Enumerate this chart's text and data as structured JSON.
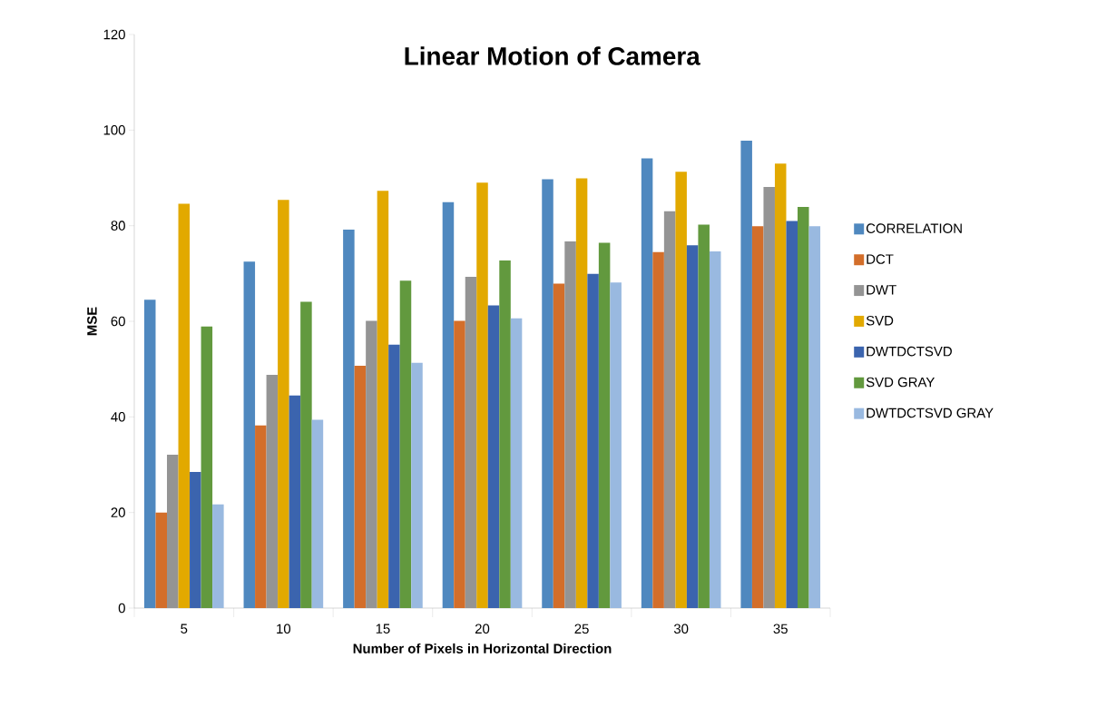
{
  "chart_data": {
    "type": "bar",
    "title": "Linear Motion of Camera",
    "xlabel": "Number of Pixels in Horizontal Direction",
    "ylabel": "MSE",
    "categories": [
      "5",
      "10",
      "15",
      "20",
      "25",
      "30",
      "35"
    ],
    "series": [
      {
        "name": "CORRELATION",
        "color": "#4f88bf",
        "values": [
          64.5,
          72.5,
          79.2,
          84.9,
          89.7,
          94.1,
          97.8
        ]
      },
      {
        "name": "DCT",
        "color": "#d36e2a",
        "values": [
          20,
          38.2,
          50.7,
          60.1,
          67.9,
          74.5,
          79.9
        ]
      },
      {
        "name": "DWT",
        "color": "#949494",
        "values": [
          32.1,
          48.8,
          60.1,
          69.3,
          76.7,
          83.0,
          88.1
        ]
      },
      {
        "name": "SVD",
        "color": "#e2a900",
        "values": [
          84.6,
          85.4,
          87.3,
          89.0,
          89.9,
          91.3,
          93.0
        ]
      },
      {
        "name": "DWTDCTSVD",
        "color": "#3b64ae",
        "values": [
          28.5,
          44.5,
          55.1,
          63.3,
          69.9,
          75.9,
          81.0
        ]
      },
      {
        "name": "SVD GRAY",
        "color": "#62993e",
        "values": [
          58.9,
          64.1,
          68.5,
          72.7,
          76.4,
          80.2,
          83.9
        ]
      },
      {
        "name": "DWTDCTSVD GRAY",
        "color": "#99b9e0",
        "values": [
          21.7,
          39.4,
          51.3,
          60.6,
          68.1,
          74.6,
          79.9
        ]
      }
    ],
    "ylim": [
      0,
      120
    ],
    "yticks": [
      0,
      20,
      40,
      60,
      80,
      100,
      120
    ],
    "legend": "right",
    "grid": false
  }
}
